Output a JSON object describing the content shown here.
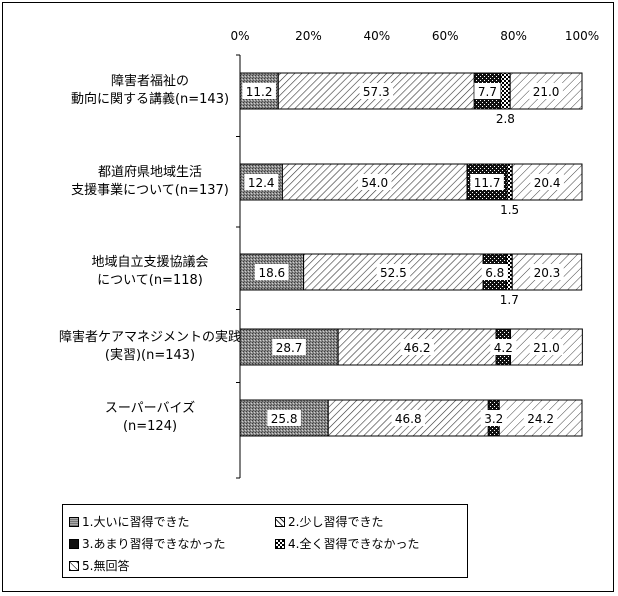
{
  "chart_data": {
    "type": "bar",
    "orientation": "horizontal",
    "stacked": true,
    "percent_axis": true,
    "xlim": [
      0,
      100
    ],
    "x_ticks": [
      "0%",
      "20%",
      "40%",
      "60%",
      "80%",
      "100%"
    ],
    "categories": [
      [
        "障害者福祉の",
        "動向に関する講義(n=143)"
      ],
      [
        "都道府県地域生活",
        "支援事業について(n=137)"
      ],
      [
        "地域自立支援協議会",
        "について(n=118)"
      ],
      [
        "障害者ケアマネジメントの実践",
        "(実習)(n=143)"
      ],
      [
        "スーパーバイズ",
        "(n=124)"
      ]
    ],
    "series": [
      {
        "name": "1.大いに習得できた",
        "values": [
          11.2,
          12.4,
          18.6,
          28.7,
          25.8
        ],
        "labels": [
          "11.2",
          "12.4",
          "18.6",
          "28.7",
          "25.8"
        ]
      },
      {
        "name": "2.少し習得できた",
        "values": [
          57.3,
          54.0,
          52.5,
          46.2,
          46.8
        ],
        "labels": [
          "57.3",
          "54.0",
          "52.5",
          "46.2",
          "46.8"
        ]
      },
      {
        "name": "3.あまり習得できなかった",
        "values": [
          7.7,
          11.7,
          6.8,
          4.2,
          3.2
        ],
        "labels": [
          "7.7",
          "11.7",
          "6.8",
          "4.2",
          "3.2"
        ]
      },
      {
        "name": "4.全く習得できなかった",
        "values": [
          2.8,
          1.5,
          1.7,
          0.0,
          0.0
        ],
        "labels": [
          "2.8",
          "1.5",
          "1.7",
          "",
          ""
        ]
      },
      {
        "name": "5.無回答",
        "values": [
          21.0,
          20.4,
          20.3,
          21.0,
          24.2
        ],
        "labels": [
          "21.0",
          "20.4",
          "20.3",
          "21.0",
          "24.2"
        ]
      }
    ],
    "legend_position": "bottom",
    "grid": false
  }
}
